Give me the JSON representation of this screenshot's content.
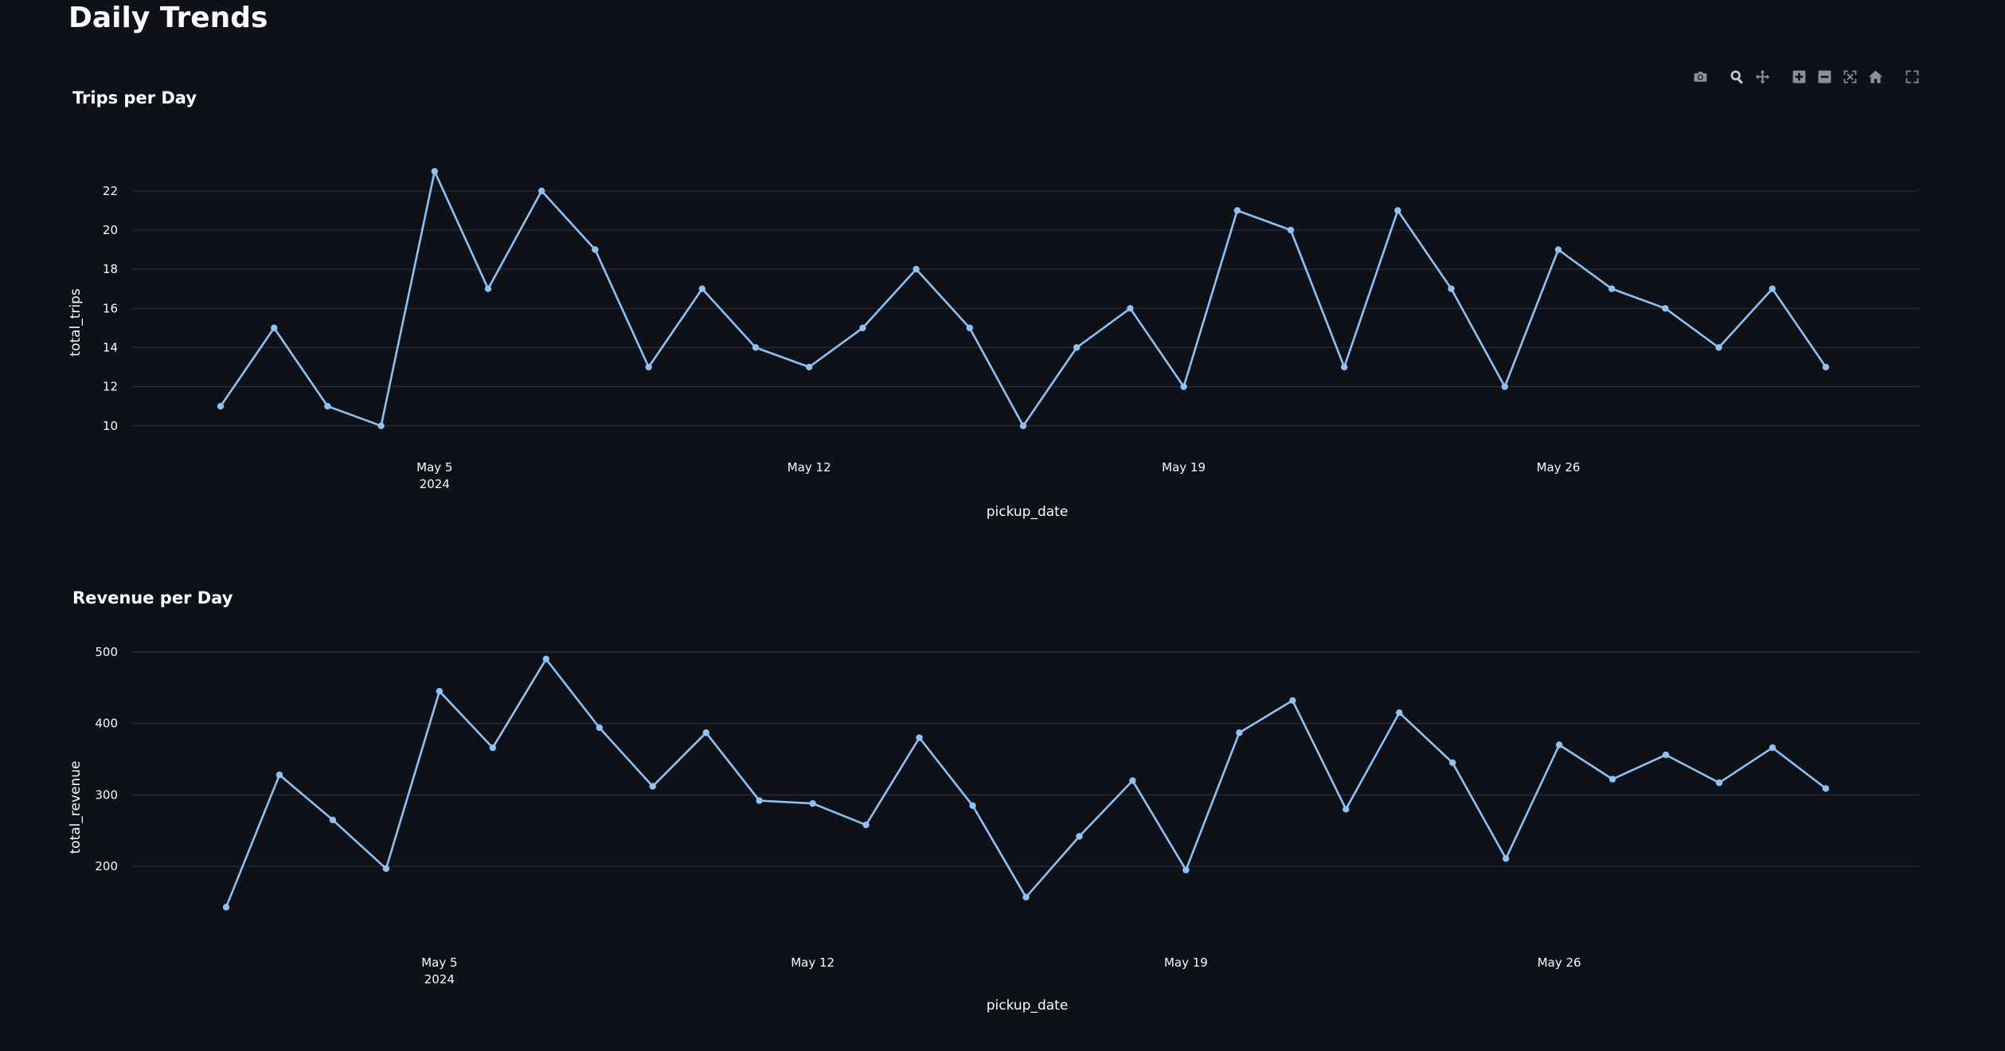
{
  "page": {
    "title": "Daily Trends"
  },
  "modebar": {
    "icons": [
      "camera-icon",
      "zoom-icon",
      "pan-icon",
      "zoom-in-icon",
      "zoom-out-icon",
      "autoscale-icon",
      "reset-axes-icon",
      "fullscreen-icon"
    ],
    "icon_color": "#8a8f98",
    "active_icon_color": "#c8ccd2"
  },
  "chart_data": [
    {
      "type": "line",
      "title": "Trips per Day",
      "xlabel": "pickup_date",
      "ylabel": "total_trips",
      "x": [
        "2024-05-01",
        "2024-05-02",
        "2024-05-03",
        "2024-05-04",
        "2024-05-05",
        "2024-05-06",
        "2024-05-07",
        "2024-05-08",
        "2024-05-09",
        "2024-05-10",
        "2024-05-11",
        "2024-05-12",
        "2024-05-13",
        "2024-05-14",
        "2024-05-15",
        "2024-05-16",
        "2024-05-17",
        "2024-05-18",
        "2024-05-19",
        "2024-05-20",
        "2024-05-21",
        "2024-05-22",
        "2024-05-23",
        "2024-05-24",
        "2024-05-25",
        "2024-05-26",
        "2024-05-27",
        "2024-05-28",
        "2024-05-29",
        "2024-05-30",
        "2024-05-31"
      ],
      "values": [
        11,
        15,
        11,
        10,
        23,
        17,
        22,
        19,
        13,
        17,
        14,
        13,
        15,
        18,
        15,
        10,
        14,
        16,
        12,
        21,
        20,
        13,
        21,
        17,
        12,
        19,
        17,
        16,
        14,
        17,
        13
      ],
      "x_ticks": [
        {
          "date": "2024-05-05",
          "label": "May 5",
          "sublabel": "2024"
        },
        {
          "date": "2024-05-12",
          "label": "May 12",
          "sublabel": ""
        },
        {
          "date": "2024-05-19",
          "label": "May 19",
          "sublabel": ""
        },
        {
          "date": "2024-05-26",
          "label": "May 26",
          "sublabel": ""
        }
      ],
      "y_ticks": [
        10,
        12,
        14,
        16,
        18,
        20,
        22
      ],
      "ylim": [
        9.3,
        23.7
      ],
      "grid": true,
      "color": "#8fc1f3"
    },
    {
      "type": "line",
      "title": "Revenue per Day",
      "xlabel": "pickup_date",
      "ylabel": "total_revenue",
      "x": [
        "2024-05-01",
        "2024-05-02",
        "2024-05-03",
        "2024-05-04",
        "2024-05-05",
        "2024-05-06",
        "2024-05-07",
        "2024-05-08",
        "2024-05-09",
        "2024-05-10",
        "2024-05-11",
        "2024-05-12",
        "2024-05-13",
        "2024-05-14",
        "2024-05-15",
        "2024-05-16",
        "2024-05-17",
        "2024-05-18",
        "2024-05-19",
        "2024-05-20",
        "2024-05-21",
        "2024-05-22",
        "2024-05-23",
        "2024-05-24",
        "2024-05-25",
        "2024-05-26",
        "2024-05-27",
        "2024-05-28",
        "2024-05-29",
        "2024-05-30",
        "2024-05-31"
      ],
      "values": [
        143,
        328,
        265,
        197,
        445,
        366,
        490,
        394,
        312,
        387,
        292,
        288,
        258,
        380,
        285,
        157,
        242,
        320,
        195,
        387,
        432,
        280,
        415,
        345,
        211,
        370,
        322,
        356,
        317,
        366,
        309
      ],
      "x_ticks": [
        {
          "date": "2024-05-05",
          "label": "May 5",
          "sublabel": "2024"
        },
        {
          "date": "2024-05-12",
          "label": "May 12",
          "sublabel": ""
        },
        {
          "date": "2024-05-19",
          "label": "May 19",
          "sublabel": ""
        },
        {
          "date": "2024-05-26",
          "label": "May 26",
          "sublabel": ""
        }
      ],
      "y_ticks": [
        200,
        300,
        400,
        500
      ],
      "ylim": [
        120,
        512
      ],
      "grid": true,
      "color": "#8fc1f3"
    }
  ]
}
